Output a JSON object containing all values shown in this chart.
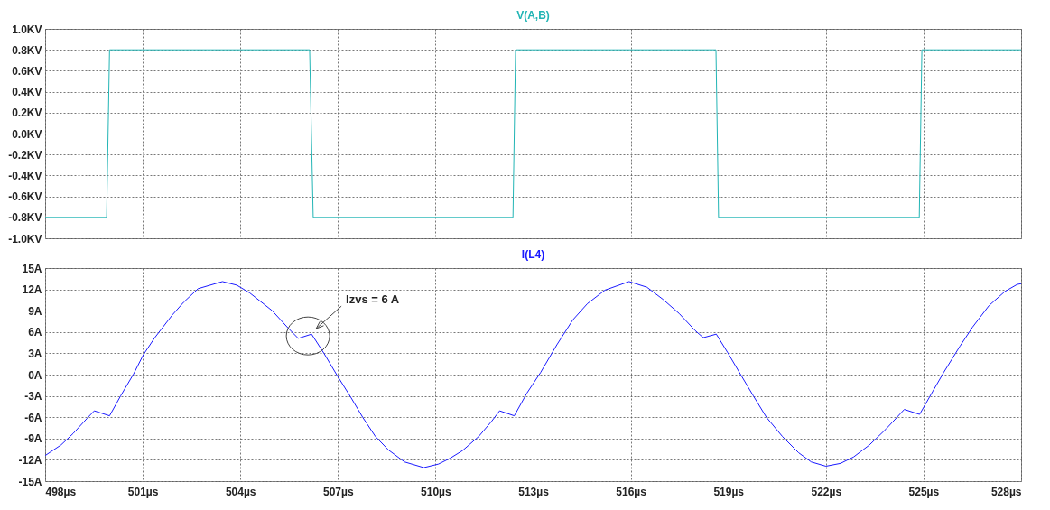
{
  "chart_data": [
    {
      "type": "line",
      "x": [
        498,
        499.89,
        499.98,
        506.13,
        506.24,
        512.38,
        512.46,
        518.62,
        518.7,
        524.87,
        524.95,
        528
      ],
      "series": [
        {
          "name": "V(A,B)",
          "color": "#22b5b5",
          "values": [
            -0.8,
            -0.8,
            0.8,
            0.8,
            -0.8,
            -0.8,
            0.8,
            0.8,
            -0.8,
            -0.8,
            0.8,
            0.8
          ]
        }
      ],
      "xlim": [
        498,
        528
      ],
      "xticks": [
        {
          "value": 498,
          "label": null
        },
        {
          "value": 501,
          "label": null
        },
        {
          "value": 504,
          "label": null
        },
        {
          "value": 507,
          "label": null
        },
        {
          "value": 510,
          "label": null
        },
        {
          "value": 513,
          "label": null
        },
        {
          "value": 516,
          "label": null
        },
        {
          "value": 519,
          "label": null
        },
        {
          "value": 522,
          "label": null
        },
        {
          "value": 525,
          "label": null
        },
        {
          "value": 528,
          "label": null
        }
      ],
      "ylim": [
        -1,
        1
      ],
      "yticks": [
        {
          "value": -1,
          "label": "-1.0KV"
        },
        {
          "value": -0.8,
          "label": "-0.8KV"
        },
        {
          "value": -0.6,
          "label": "-0.6KV"
        },
        {
          "value": -0.4,
          "label": "-0.4KV"
        },
        {
          "value": -0.2,
          "label": "-0.2KV"
        },
        {
          "value": 0,
          "label": "0.0KV"
        },
        {
          "value": 0.2,
          "label": "0.2KV"
        },
        {
          "value": 0.4,
          "label": "0.4KV"
        },
        {
          "value": 0.6,
          "label": "0.6KV"
        },
        {
          "value": 0.8,
          "label": "0.8KV"
        },
        {
          "value": 1,
          "label": "1.0KV"
        }
      ],
      "grid": true,
      "tick_labels": "y"
    },
    {
      "type": "line",
      "x": [
        498.0,
        498.49,
        498.86,
        499.28,
        499.51,
        499.98,
        500.32,
        500.72,
        501.02,
        501.37,
        501.91,
        502.26,
        502.7,
        503.45,
        503.89,
        504.29,
        504.98,
        505.48,
        505.78,
        506.19,
        506.57,
        506.96,
        507.41,
        507.76,
        508.15,
        508.55,
        509.05,
        509.64,
        510.09,
        510.44,
        510.83,
        511.33,
        511.72,
        511.97,
        512.42,
        512.81,
        513.23,
        513.73,
        514.22,
        514.67,
        515.21,
        515.95,
        516.5,
        516.99,
        517.49,
        517.98,
        518.23,
        518.63,
        518.98,
        519.38,
        519.77,
        520.17,
        520.66,
        521.16,
        521.55,
        522.0,
        522.45,
        522.85,
        523.34,
        523.84,
        524.41,
        524.88,
        525.28,
        525.62,
        526.12,
        526.51,
        527.01,
        527.5,
        527.88,
        528
      ],
      "series": [
        {
          "name": "I(L4)",
          "color": "#1a1aff",
          "values": [
            -11.4,
            -9.9,
            -8.3,
            -6.2,
            -5.1,
            -5.8,
            -3.0,
            0.1,
            2.8,
            5.2,
            8.4,
            10.2,
            12.1,
            13.1,
            12.6,
            11.5,
            9.0,
            6.5,
            5.1,
            5.7,
            3.0,
            0.0,
            -3.3,
            -6.0,
            -8.7,
            -10.6,
            -12.3,
            -13.1,
            -12.6,
            -11.8,
            -10.7,
            -8.7,
            -6.6,
            -5.1,
            -5.8,
            -2.6,
            0.3,
            4.2,
            7.7,
            10.0,
            11.9,
            13.1,
            12.3,
            10.6,
            8.6,
            6.2,
            5.2,
            5.7,
            3.1,
            0.0,
            -3.0,
            -6.0,
            -8.7,
            -11.0,
            -12.3,
            -12.9,
            -12.5,
            -11.6,
            -9.9,
            -7.7,
            -4.9,
            -5.6,
            -2.4,
            0.3,
            4.0,
            6.7,
            9.7,
            11.7,
            12.7,
            12.8
          ]
        }
      ],
      "xlim": [
        498,
        528
      ],
      "xticks": [
        {
          "value": 498,
          "label": "498µs"
        },
        {
          "value": 501,
          "label": "501µs"
        },
        {
          "value": 504,
          "label": "504µs"
        },
        {
          "value": 507,
          "label": "507µs"
        },
        {
          "value": 510,
          "label": "510µs"
        },
        {
          "value": 513,
          "label": "513µs"
        },
        {
          "value": 516,
          "label": "516µs"
        },
        {
          "value": 519,
          "label": "519µs"
        },
        {
          "value": 522,
          "label": "522µs"
        },
        {
          "value": 525,
          "label": "525µs"
        },
        {
          "value": 528,
          "label": "528µs"
        }
      ],
      "ylim": [
        -15,
        15
      ],
      "yticks": [
        {
          "value": -15,
          "label": "-15A"
        },
        {
          "value": -12,
          "label": "-12A"
        },
        {
          "value": -9,
          "label": "-9A"
        },
        {
          "value": -6,
          "label": "-6A"
        },
        {
          "value": -3,
          "label": "-3A"
        },
        {
          "value": 0,
          "label": "0A"
        },
        {
          "value": 3,
          "label": "3A"
        },
        {
          "value": 6,
          "label": "6A"
        },
        {
          "value": 9,
          "label": "9A"
        },
        {
          "value": 12,
          "label": "12A"
        },
        {
          "value": 15,
          "label": "15A"
        }
      ],
      "annotations": [
        {
          "text": "Izvs = 6 A",
          "x": 506.19,
          "y": 5.7
        }
      ],
      "grid": true
    }
  ]
}
